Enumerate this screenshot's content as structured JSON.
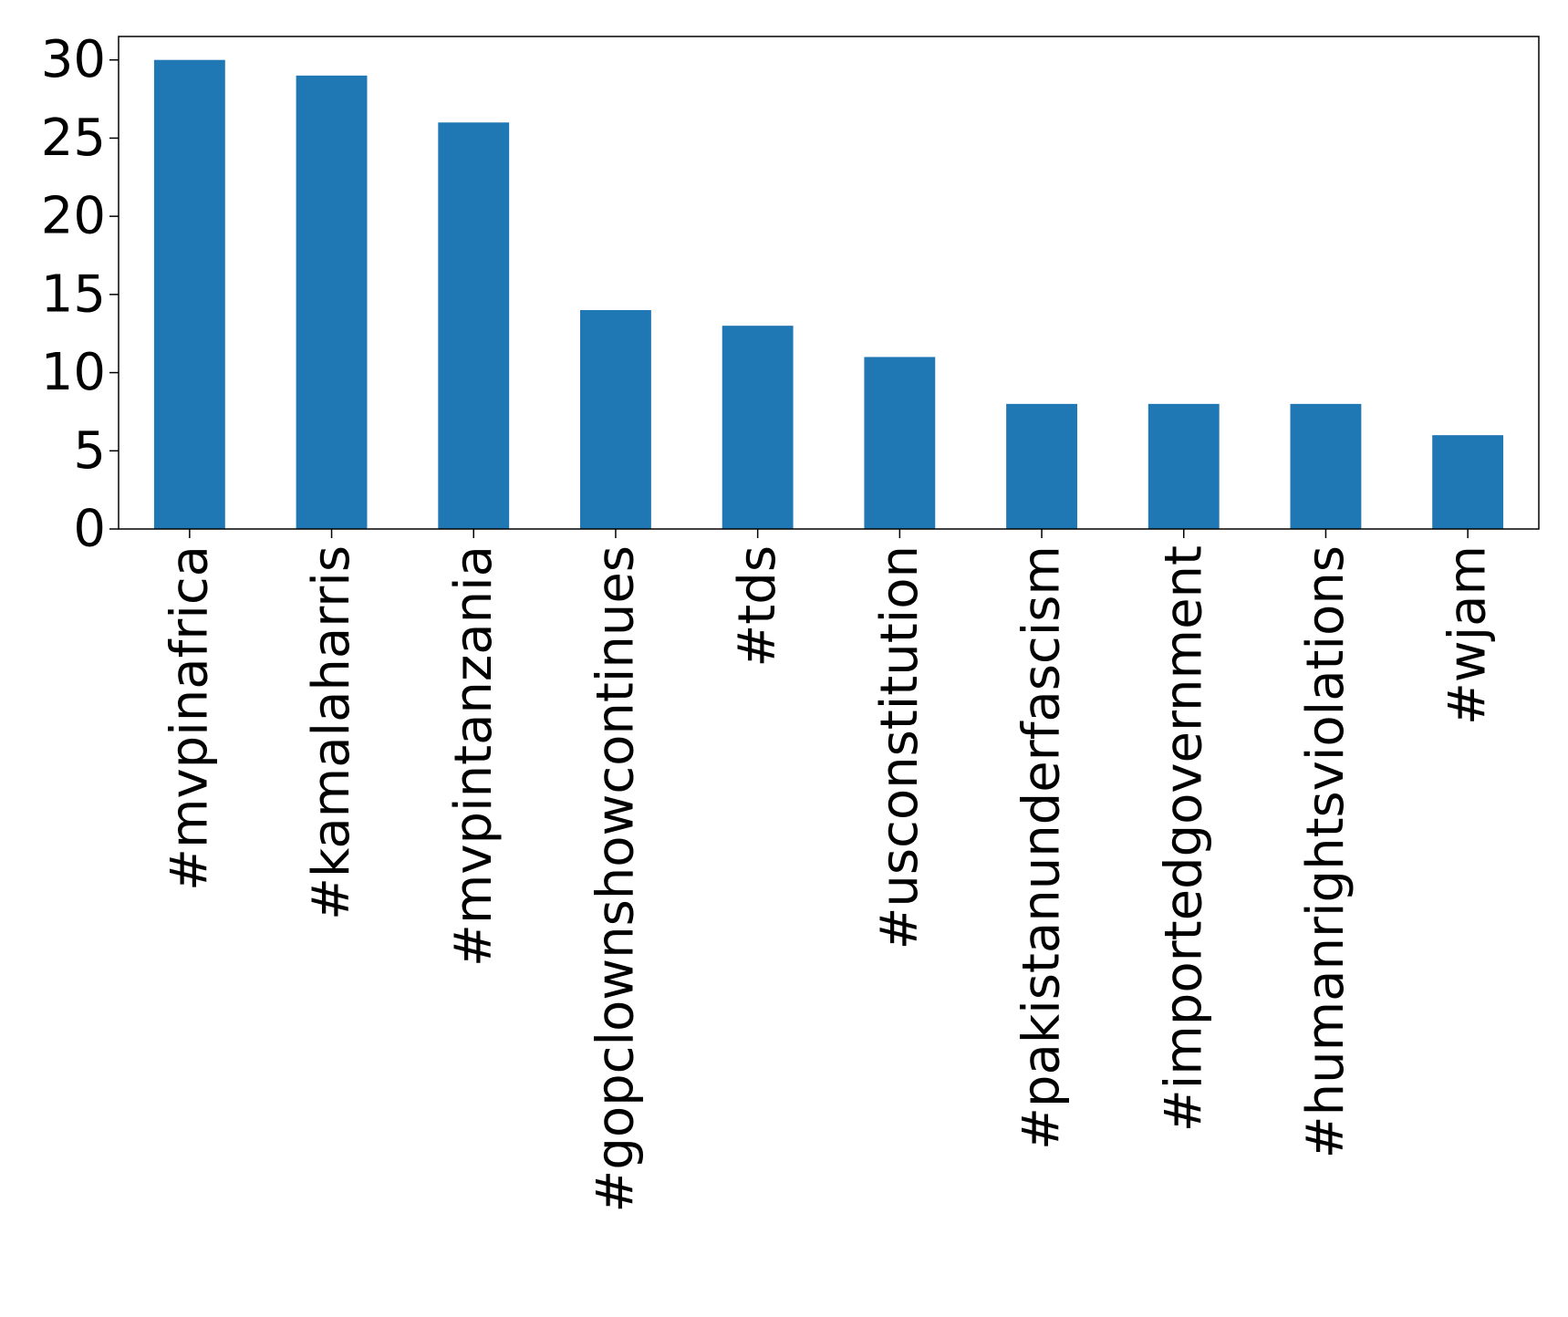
{
  "chart_data": {
    "type": "bar",
    "title": "",
    "xlabel": "",
    "ylabel": "",
    "categories": [
      "#mvpinafrica",
      "#kamalaharris",
      "#mvpintanzania",
      "#gopclownshowcontinues",
      "#tds",
      "#usconstitution",
      "#pakistanunderfascism",
      "#importedgovernment",
      "#humanrightsviolations",
      "#wjam"
    ],
    "values": [
      30,
      29,
      26,
      14,
      13,
      11,
      8,
      8,
      8,
      6
    ],
    "ylim": [
      0,
      31.5
    ],
    "yticks": [
      0,
      5,
      10,
      15,
      20,
      25,
      30
    ],
    "bar_color": "#1f77b4",
    "grid": false,
    "legend": "none"
  }
}
